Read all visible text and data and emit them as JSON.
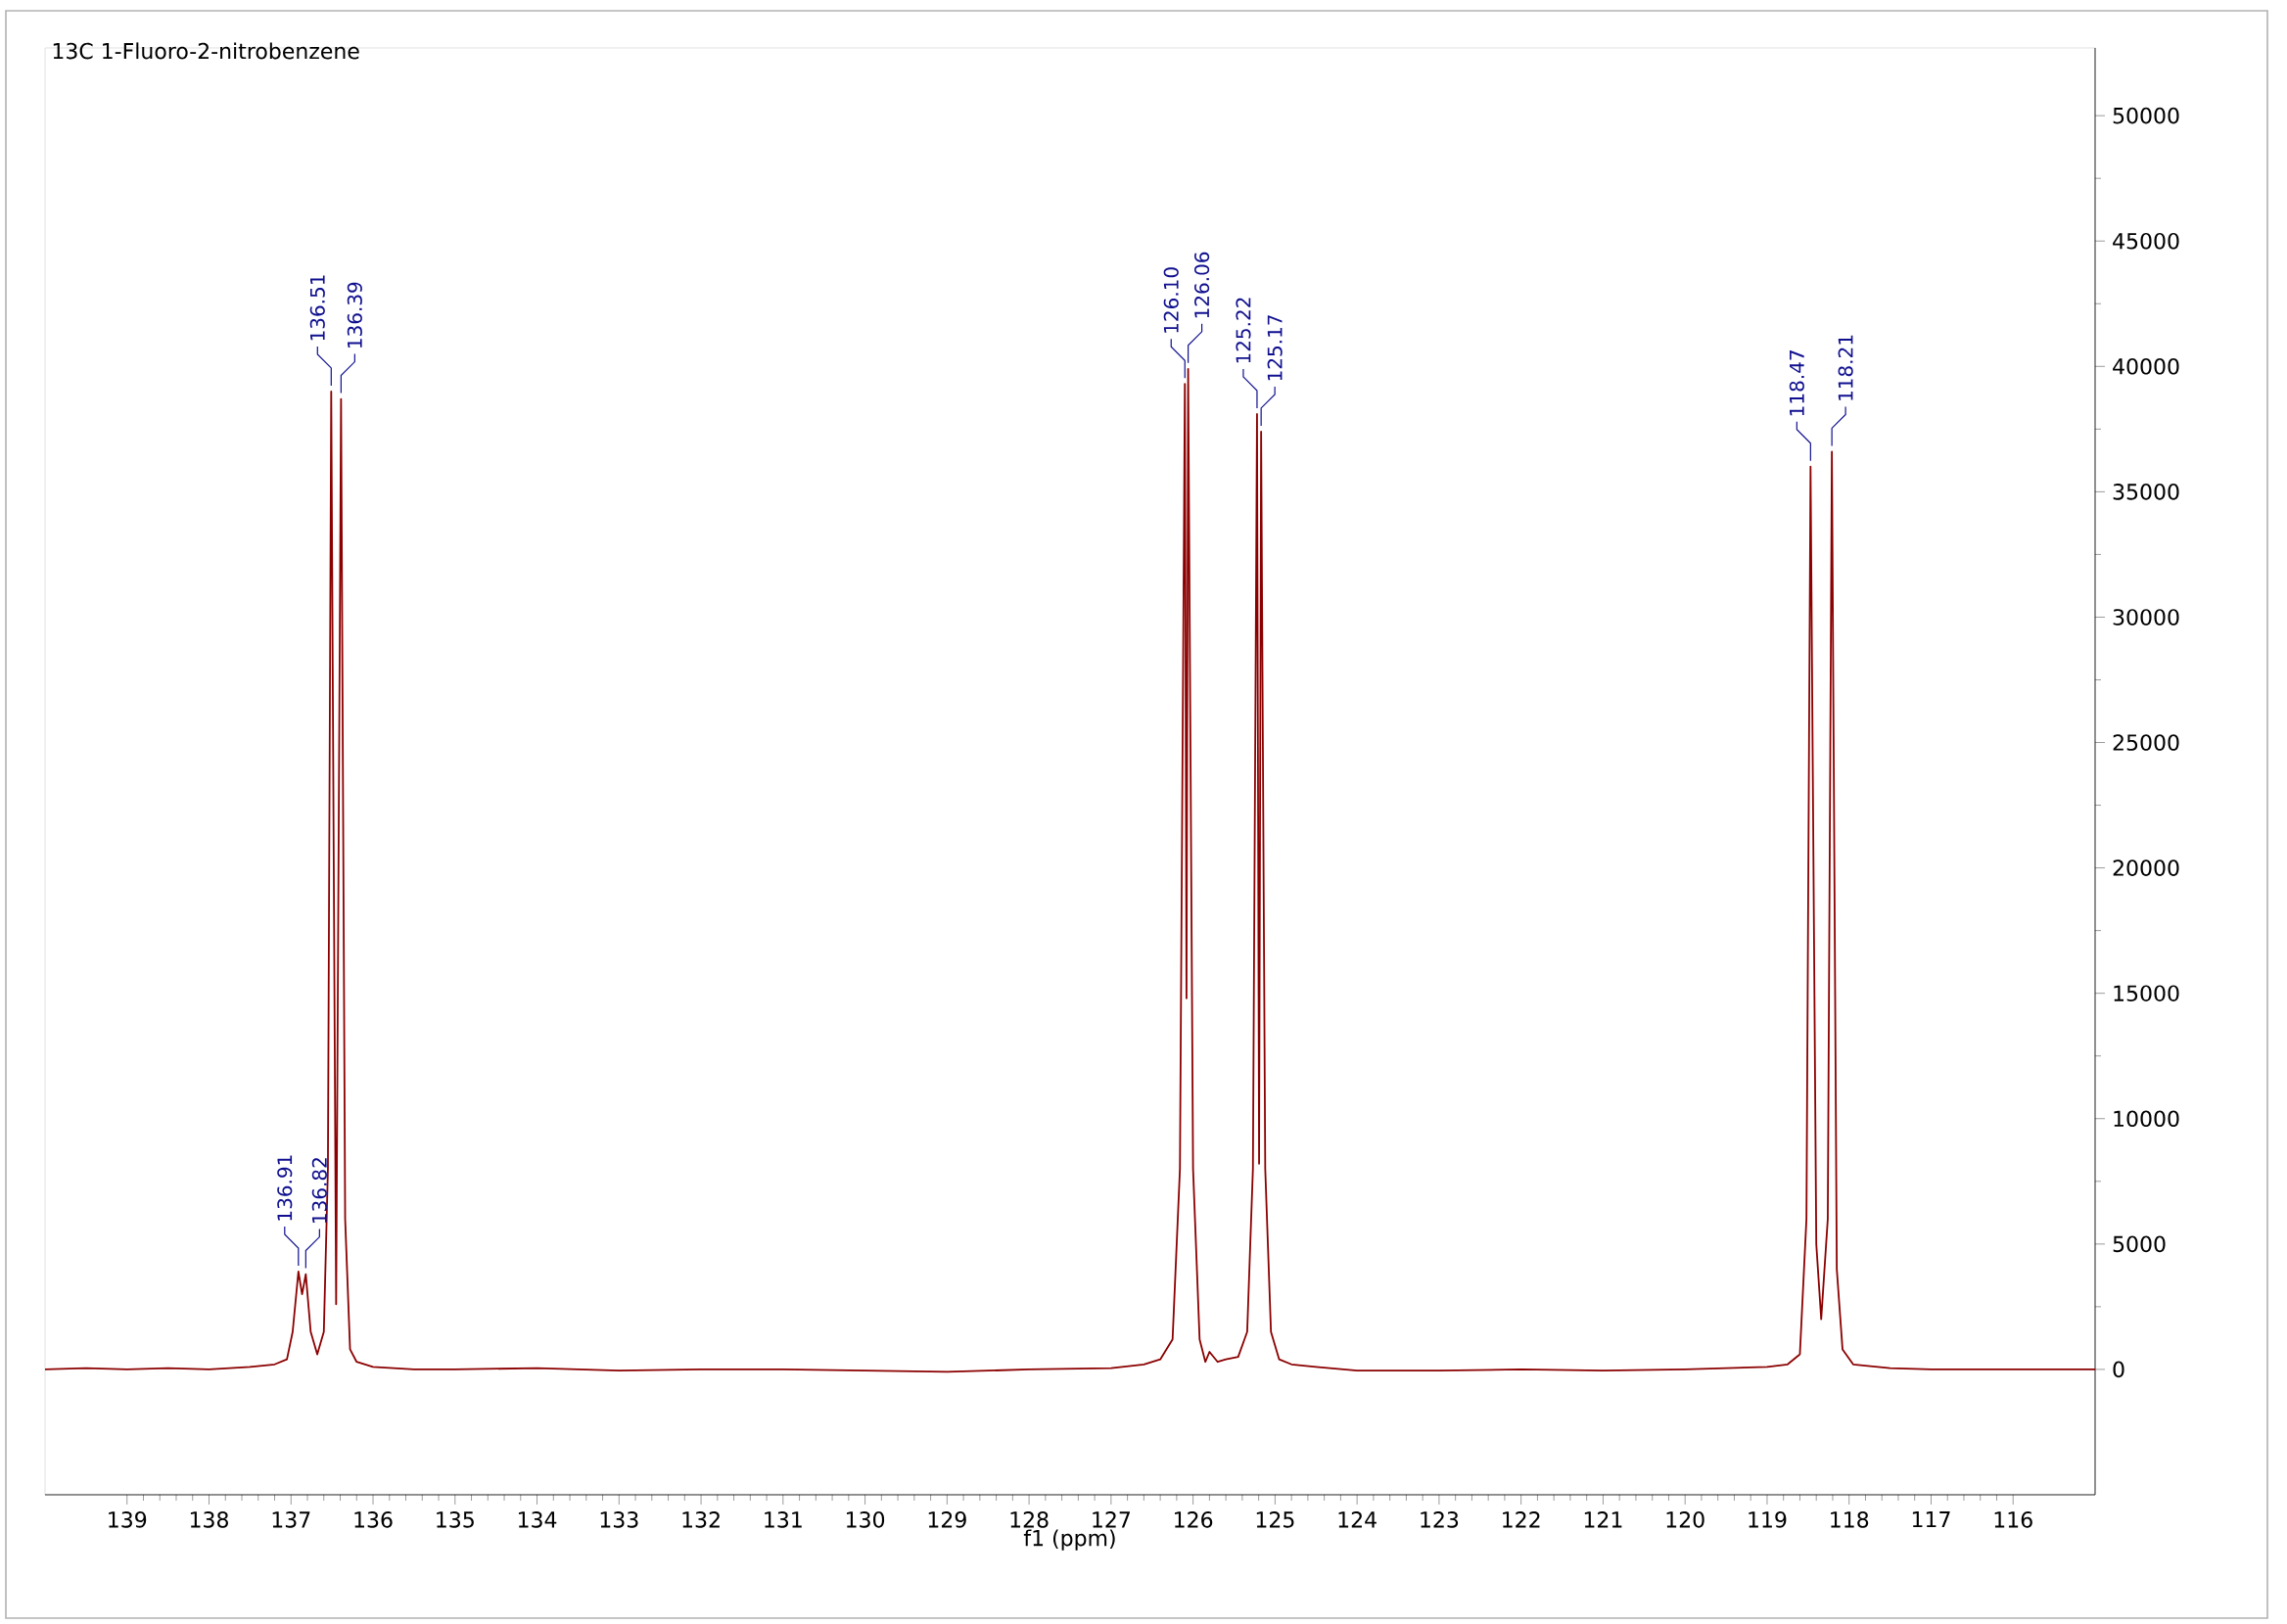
{
  "chart_data": {
    "type": "line",
    "title": "13C 1-Fluoro-2-nitrobenzene",
    "xlabel": "f1 (ppm)",
    "xlim": [
      140,
      115
    ],
    "ylim": [
      -5000,
      52700
    ],
    "xticks": [
      139,
      138,
      137,
      136,
      135,
      134,
      133,
      132,
      131,
      130,
      129,
      128,
      127,
      126,
      125,
      124,
      123,
      122,
      121,
      120,
      119,
      118,
      117,
      116
    ],
    "yticks": [
      0,
      5000,
      10000,
      15000,
      20000,
      25000,
      30000,
      35000,
      40000,
      45000,
      50000
    ],
    "grid": false,
    "marker": "none",
    "line_style": "solid",
    "series": [
      {
        "color": "#8b0000",
        "x": [
          140.0,
          139.5,
          139.0,
          138.5,
          138.0,
          137.5,
          137.2,
          137.05,
          136.98,
          136.91,
          136.865,
          136.82,
          136.76,
          136.68,
          136.6,
          136.55,
          136.51,
          136.45,
          136.39,
          136.34,
          136.28,
          136.2,
          136.0,
          135.5,
          135.0,
          134.0,
          133.0,
          132.0,
          131.0,
          130.0,
          129.0,
          128.0,
          127.0,
          126.6,
          126.4,
          126.25,
          126.16,
          126.1,
          126.08,
          126.06,
          126.0,
          125.92,
          125.85,
          125.8,
          125.7,
          125.6,
          125.45,
          125.34,
          125.27,
          125.22,
          125.195,
          125.17,
          125.12,
          125.05,
          124.95,
          124.8,
          124.5,
          124.0,
          123.0,
          122.0,
          121.0,
          120.0,
          119.0,
          118.75,
          118.6,
          118.52,
          118.47,
          118.4,
          118.34,
          118.26,
          118.21,
          118.15,
          118.08,
          117.95,
          117.5,
          117.0,
          116.0,
          115.0
        ],
        "values": [
          0,
          50,
          0,
          50,
          0,
          100,
          200,
          400,
          1500,
          3900,
          3000,
          3800,
          1500,
          600,
          1500,
          8000,
          39000,
          2600,
          38700,
          6000,
          800,
          300,
          100,
          0,
          0,
          50,
          -50,
          0,
          0,
          -50,
          -100,
          0,
          50,
          200,
          400,
          1200,
          8000,
          39300,
          14800,
          39900,
          8000,
          1200,
          300,
          700,
          300,
          400,
          500,
          1500,
          8000,
          38100,
          8200,
          37400,
          8000,
          1500,
          400,
          200,
          100,
          -50,
          -50,
          0,
          -50,
          0,
          100,
          200,
          600,
          6000,
          36000,
          5000,
          2000,
          6000,
          36600,
          4000,
          800,
          200,
          50,
          0,
          0,
          0
        ]
      }
    ],
    "annotations": [
      {
        "text": "136.91",
        "x": 136.91,
        "y": 3900
      },
      {
        "text": "136.82",
        "x": 136.82,
        "y": 3800
      },
      {
        "text": "136.51",
        "x": 136.51,
        "y": 39000
      },
      {
        "text": "136.39",
        "x": 136.39,
        "y": 38700
      },
      {
        "text": "126.10",
        "x": 126.1,
        "y": 39300
      },
      {
        "text": "126.06",
        "x": 126.06,
        "y": 39900
      },
      {
        "text": "125.22",
        "x": 125.22,
        "y": 38100
      },
      {
        "text": "125.17",
        "x": 125.17,
        "y": 37400
      },
      {
        "text": "118.47",
        "x": 118.47,
        "y": 36000
      },
      {
        "text": "118.21",
        "x": 118.21,
        "y": 36600
      }
    ]
  }
}
